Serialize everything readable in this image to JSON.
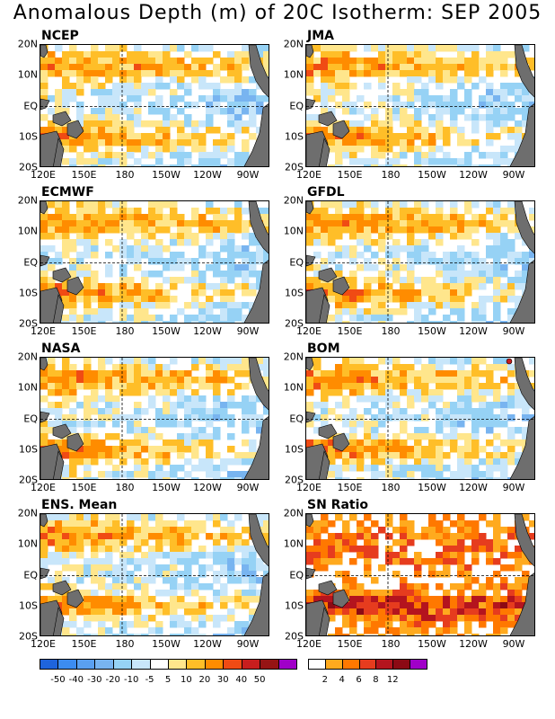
{
  "title": "Anomalous Depth (m) of 20C Isotherm: SEP 2005",
  "panels": [
    {
      "name": "NCEP",
      "kind": "anom",
      "seed": 11
    },
    {
      "name": "JMA",
      "kind": "anom",
      "seed": 23
    },
    {
      "name": "ECMWF",
      "kind": "anom",
      "seed": 37
    },
    {
      "name": "GFDL",
      "kind": "anom",
      "seed": 41
    },
    {
      "name": "NASA",
      "kind": "anom",
      "seed": 53
    },
    {
      "name": "BOM",
      "kind": "anom",
      "seed": 67
    },
    {
      "name": "ENS. Mean",
      "kind": "anom",
      "seed": 71
    },
    {
      "name": "SN Ratio",
      "kind": "sn",
      "seed": 89
    }
  ],
  "lat_labels": [
    "20N",
    "10N",
    "EQ",
    "10S",
    "20S"
  ],
  "lon_labels": [
    "120E",
    "150E",
    "180",
    "150W",
    "120W",
    "90W"
  ],
  "anomaly_legend": {
    "labels": [
      "-50",
      "-40",
      "-30",
      "-20",
      "-10",
      "-5",
      "5",
      "10",
      "20",
      "30",
      "40",
      "50"
    ],
    "colors": [
      "#1e64dc",
      "#3c8cf0",
      "#5aa0f0",
      "#78b4f0",
      "#96d2f5",
      "#c8e6fa",
      "#ffffff",
      "#ffe68c",
      "#ffbe28",
      "#ff8c00",
      "#f04b14",
      "#c81e1e",
      "#961414",
      "#a000c8"
    ]
  },
  "sn_legend": {
    "labels": [
      "2",
      "4",
      "6",
      "8",
      "12"
    ],
    "colors": [
      "#ffffff",
      "#ffaa1e",
      "#ff7800",
      "#e63c1e",
      "#b4141e",
      "#8c0a14",
      "#a000c8"
    ]
  },
  "land_color": "#6e6e6e"
}
